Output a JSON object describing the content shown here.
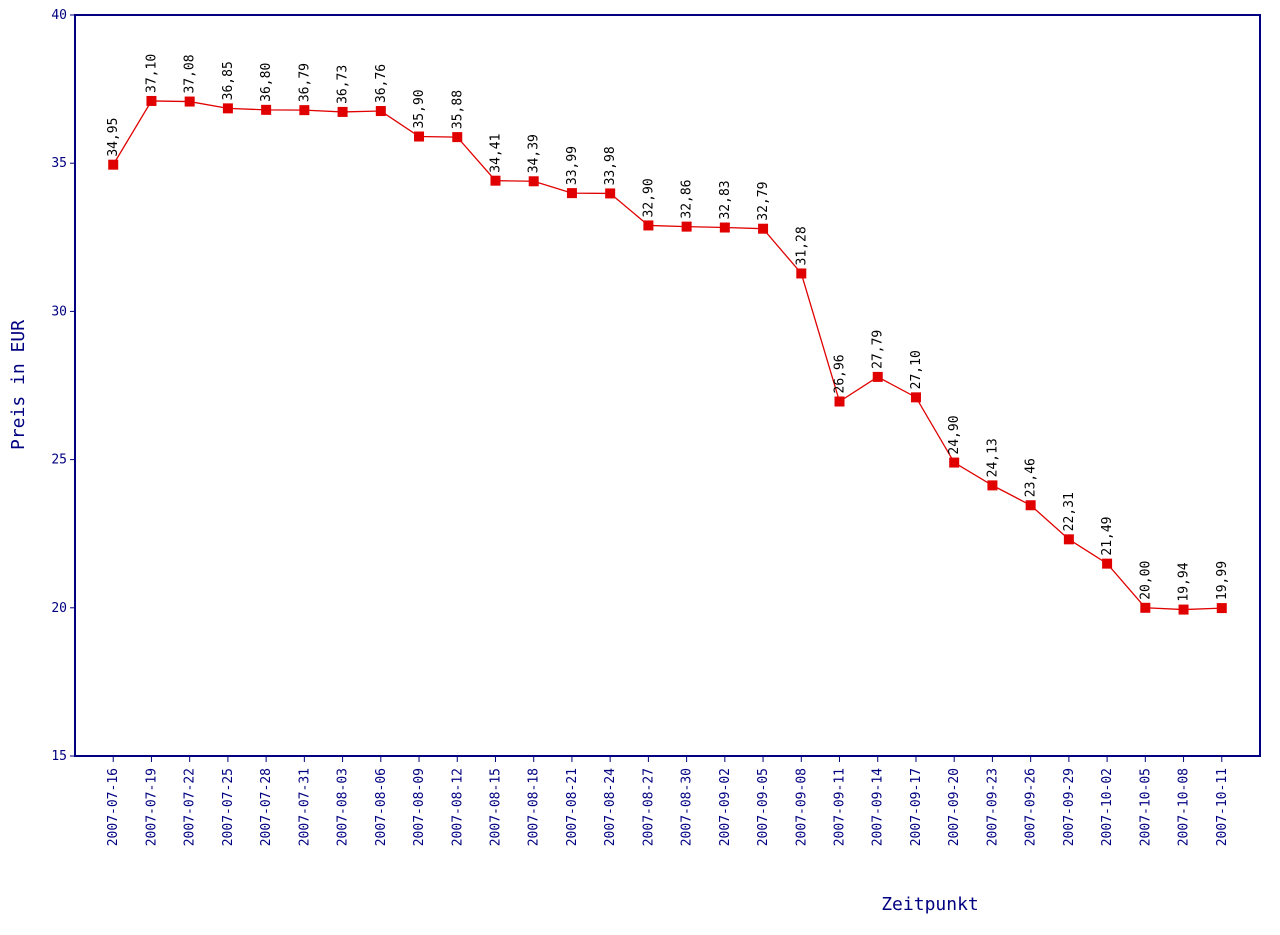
{
  "chart_data": {
    "type": "line",
    "x_label": "Zeitpunkt",
    "y_label": "Preis in EUR",
    "categories": [
      "2007-07-16",
      "2007-07-19",
      "2007-07-22",
      "2007-07-25",
      "2007-07-28",
      "2007-07-31",
      "2007-08-03",
      "2007-08-06",
      "2007-08-09",
      "2007-08-12",
      "2007-08-15",
      "2007-08-18",
      "2007-08-21",
      "2007-08-24",
      "2007-08-27",
      "2007-08-30",
      "2007-09-02",
      "2007-09-05",
      "2007-09-08",
      "2007-09-11",
      "2007-09-14",
      "2007-09-17",
      "2007-09-20",
      "2007-09-23",
      "2007-09-26",
      "2007-09-29",
      "2007-10-02",
      "2007-10-05",
      "2007-10-08",
      "2007-10-11"
    ],
    "values": [
      34.95,
      37.1,
      37.08,
      36.85,
      36.8,
      36.79,
      36.73,
      36.76,
      35.9,
      35.88,
      34.41,
      34.39,
      33.99,
      33.98,
      32.9,
      32.86,
      32.83,
      32.79,
      31.28,
      26.96,
      27.79,
      27.1,
      24.9,
      24.13,
      23.46,
      22.31,
      21.49,
      20.0,
      19.94,
      19.99
    ],
    "value_labels": [
      "34,95",
      "37,10",
      "37,08",
      "36,85",
      "36,80",
      "36,79",
      "36,73",
      "36,76",
      "35,90",
      "35,88",
      "34,41",
      "34,39",
      "33,99",
      "33,98",
      "32,90",
      "32,86",
      "32,83",
      "32,79",
      "31,28",
      "26,96",
      "27,79",
      "27,10",
      "24,90",
      "24,13",
      "23,46",
      "22,31",
      "21,49",
      "20,00",
      "19,94",
      "19,99"
    ],
    "color": "#e00000",
    "axis_color": "#000080",
    "ylim": [
      15,
      40
    ],
    "yticks": [
      15,
      20,
      25,
      30,
      35,
      40
    ]
  }
}
